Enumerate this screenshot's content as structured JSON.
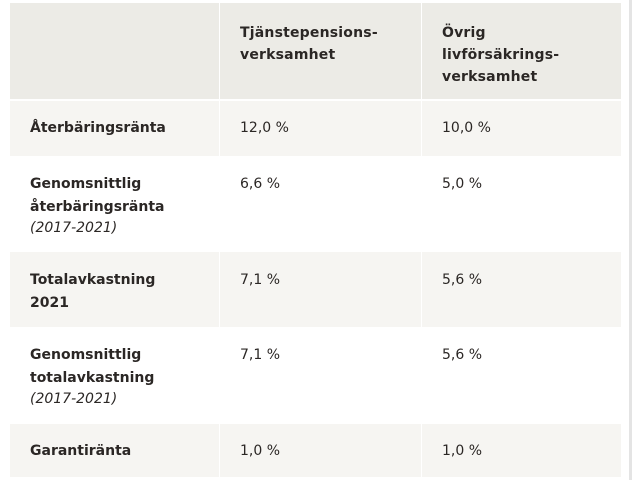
{
  "table": {
    "headers": [
      "",
      "Tjänstepensions-\nverksamhet",
      "Övrig\nlivförsäkrings-\nverksamhet"
    ],
    "rows": [
      {
        "label": "Återbäringsränta",
        "period": "",
        "col1": "12,0 %",
        "col2": "10,0 %"
      },
      {
        "label": "Genomsnittlig\nåterbäringsränta",
        "period": "(2017-2021)",
        "col1": "6,6 %",
        "col2": "5,0 %"
      },
      {
        "label": "Totalavkastning\n2021",
        "period": "",
        "col1": "7,1 %",
        "col2": "5,6 %"
      },
      {
        "label": "Genomsnittlig\ntotalavkastning",
        "period": "(2017-2021)",
        "col1": "7,1 %",
        "col2": "5,6 %"
      },
      {
        "label": "Garantiränta",
        "period": "",
        "col1": "1,0 %",
        "col2": "1,0 %"
      }
    ]
  },
  "colors": {
    "header_bg": "#ecebe6",
    "alt_row_bg": "#f6f5f2",
    "text": "#2b2725"
  }
}
